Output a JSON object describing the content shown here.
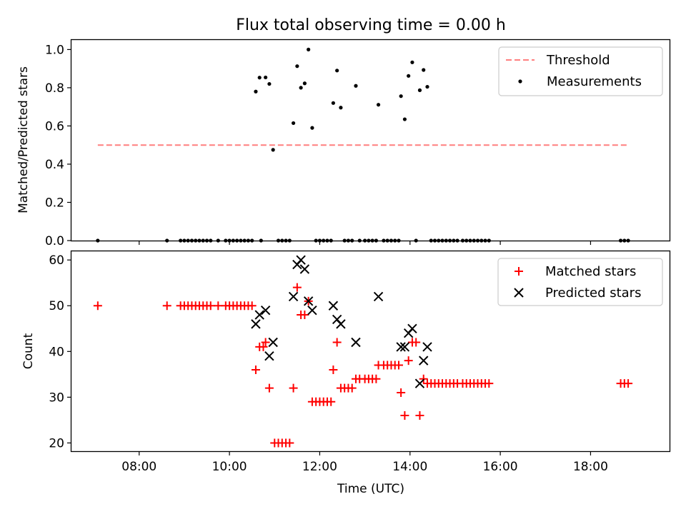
{
  "chart_data": [
    {
      "type": "scatter",
      "title": "Flux total observing time = 0.00 h",
      "xlabel": "",
      "ylabel": "Matched/Predicted stars",
      "xlim": [
        "06:30",
        "19:45"
      ],
      "ylim": [
        0,
        1.05
      ],
      "yticks": [
        "0.0",
        "0.2",
        "0.4",
        "0.6",
        "0.8",
        "1.0"
      ],
      "legend_position": "top-right",
      "threshold": {
        "name": "Threshold",
        "value": 0.5,
        "x_range": [
          "07:05",
          "18:50"
        ],
        "color": "#ff7f7f",
        "style": "dashed"
      },
      "series": [
        {
          "name": "Measurements",
          "color": "#000000",
          "marker": "dot",
          "points": [
            [
              "07:05",
              0.0
            ],
            [
              "08:37",
              0.0
            ],
            [
              "08:55",
              0.0
            ],
            [
              "09:00",
              0.0
            ],
            [
              "09:05",
              0.0
            ],
            [
              "09:10",
              0.0
            ],
            [
              "09:15",
              0.0
            ],
            [
              "09:20",
              0.0
            ],
            [
              "09:25",
              0.0
            ],
            [
              "09:30",
              0.0
            ],
            [
              "09:35",
              0.0
            ],
            [
              "09:45",
              0.0
            ],
            [
              "09:55",
              0.0
            ],
            [
              "10:00",
              0.0
            ],
            [
              "10:05",
              0.0
            ],
            [
              "10:10",
              0.0
            ],
            [
              "10:15",
              0.0
            ],
            [
              "10:20",
              0.0
            ],
            [
              "10:25",
              0.0
            ],
            [
              "10:30",
              0.0
            ],
            [
              "10:35",
              0.78
            ],
            [
              "10:40",
              0.853
            ],
            [
              "10:42",
              0.0
            ],
            [
              "10:48",
              0.854
            ],
            [
              "10:53",
              0.82
            ],
            [
              "10:58",
              0.475
            ],
            [
              "11:05",
              0.0
            ],
            [
              "11:10",
              0.0
            ],
            [
              "11:15",
              0.0
            ],
            [
              "11:20",
              0.0
            ],
            [
              "11:25",
              0.615
            ],
            [
              "11:30",
              0.913
            ],
            [
              "11:35",
              0.8
            ],
            [
              "11:40",
              0.823
            ],
            [
              "11:45",
              1.0
            ],
            [
              "11:50",
              0.59
            ],
            [
              "11:55",
              0.0
            ],
            [
              "12:00",
              0.0
            ],
            [
              "12:05",
              0.0
            ],
            [
              "12:10",
              0.0
            ],
            [
              "12:15",
              0.0
            ],
            [
              "12:18",
              0.72
            ],
            [
              "12:23",
              0.89
            ],
            [
              "12:28",
              0.696
            ],
            [
              "12:33",
              0.0
            ],
            [
              "12:38",
              0.0
            ],
            [
              "12:43",
              0.0
            ],
            [
              "12:48",
              0.81
            ],
            [
              "12:53",
              0.0
            ],
            [
              "13:00",
              0.0
            ],
            [
              "13:05",
              0.0
            ],
            [
              "13:10",
              0.0
            ],
            [
              "13:15",
              0.0
            ],
            [
              "13:18",
              0.711
            ],
            [
              "13:25",
              0.0
            ],
            [
              "13:30",
              0.0
            ],
            [
              "13:35",
              0.0
            ],
            [
              "13:40",
              0.0
            ],
            [
              "13:45",
              0.0
            ],
            [
              "13:48",
              0.756
            ],
            [
              "13:53",
              0.635
            ],
            [
              "13:58",
              0.862
            ],
            [
              "14:03",
              0.933
            ],
            [
              "14:08",
              0.0
            ],
            [
              "14:13",
              0.787
            ],
            [
              "14:18",
              0.893
            ],
            [
              "14:23",
              0.805
            ],
            [
              "14:28",
              0.0
            ],
            [
              "14:33",
              0.0
            ],
            [
              "14:38",
              0.0
            ],
            [
              "14:43",
              0.0
            ],
            [
              "14:48",
              0.0
            ],
            [
              "14:53",
              0.0
            ],
            [
              "14:58",
              0.0
            ],
            [
              "15:03",
              0.0
            ],
            [
              "15:10",
              0.0
            ],
            [
              "15:15",
              0.0
            ],
            [
              "15:20",
              0.0
            ],
            [
              "15:25",
              0.0
            ],
            [
              "15:30",
              0.0
            ],
            [
              "15:35",
              0.0
            ],
            [
              "15:40",
              0.0
            ],
            [
              "15:45",
              0.0
            ],
            [
              "18:40",
              0.0
            ],
            [
              "18:45",
              0.0
            ],
            [
              "18:50",
              0.0
            ]
          ]
        }
      ]
    },
    {
      "type": "scatter",
      "title": "",
      "xlabel": "Time (UTC)",
      "ylabel": "Count",
      "xlim": [
        "06:30",
        "19:45"
      ],
      "ylim": [
        18.2,
        61.9
      ],
      "yticks": [
        "20",
        "30",
        "40",
        "50",
        "60"
      ],
      "xticks": [
        "08:00",
        "10:00",
        "12:00",
        "14:00",
        "16:00",
        "18:00"
      ],
      "legend_position": "top-right",
      "series": [
        {
          "name": "Matched stars",
          "color": "#ff0000",
          "marker": "plus",
          "points": [
            [
              "07:05",
              50
            ],
            [
              "08:37",
              50
            ],
            [
              "08:55",
              50
            ],
            [
              "09:00",
              50
            ],
            [
              "09:05",
              50
            ],
            [
              "09:10",
              50
            ],
            [
              "09:15",
              50
            ],
            [
              "09:20",
              50
            ],
            [
              "09:25",
              50
            ],
            [
              "09:30",
              50
            ],
            [
              "09:35",
              50
            ],
            [
              "09:45",
              50
            ],
            [
              "09:55",
              50
            ],
            [
              "10:00",
              50
            ],
            [
              "10:05",
              50
            ],
            [
              "10:10",
              50
            ],
            [
              "10:15",
              50
            ],
            [
              "10:20",
              50
            ],
            [
              "10:25",
              50
            ],
            [
              "10:30",
              50
            ],
            [
              "10:35",
              36
            ],
            [
              "10:40",
              41
            ],
            [
              "10:45",
              41
            ],
            [
              "10:48",
              42
            ],
            [
              "10:53",
              32
            ],
            [
              "11:00",
              20
            ],
            [
              "11:05",
              20
            ],
            [
              "11:10",
              20
            ],
            [
              "11:15",
              20
            ],
            [
              "11:20",
              20
            ],
            [
              "11:25",
              32
            ],
            [
              "11:30",
              54
            ],
            [
              "11:35",
              48
            ],
            [
              "11:40",
              48
            ],
            [
              "11:45",
              51
            ],
            [
              "11:50",
              29
            ],
            [
              "11:55",
              29
            ],
            [
              "12:00",
              29
            ],
            [
              "12:05",
              29
            ],
            [
              "12:10",
              29
            ],
            [
              "12:15",
              29
            ],
            [
              "12:18",
              36
            ],
            [
              "12:23",
              42
            ],
            [
              "12:28",
              32
            ],
            [
              "12:33",
              32
            ],
            [
              "12:38",
              32
            ],
            [
              "12:43",
              32
            ],
            [
              "12:48",
              34
            ],
            [
              "12:53",
              34
            ],
            [
              "13:00",
              34
            ],
            [
              "13:05",
              34
            ],
            [
              "13:10",
              34
            ],
            [
              "13:15",
              34
            ],
            [
              "13:18",
              37
            ],
            [
              "13:25",
              37
            ],
            [
              "13:30",
              37
            ],
            [
              "13:35",
              37
            ],
            [
              "13:40",
              37
            ],
            [
              "13:45",
              37
            ],
            [
              "13:48",
              31
            ],
            [
              "13:53",
              26
            ],
            [
              "13:58",
              38
            ],
            [
              "14:03",
              42
            ],
            [
              "14:08",
              42
            ],
            [
              "14:13",
              26
            ],
            [
              "14:18",
              34
            ],
            [
              "14:23",
              33
            ],
            [
              "14:28",
              33
            ],
            [
              "14:33",
              33
            ],
            [
              "14:38",
              33
            ],
            [
              "14:43",
              33
            ],
            [
              "14:48",
              33
            ],
            [
              "14:53",
              33
            ],
            [
              "14:58",
              33
            ],
            [
              "15:03",
              33
            ],
            [
              "15:10",
              33
            ],
            [
              "15:15",
              33
            ],
            [
              "15:20",
              33
            ],
            [
              "15:25",
              33
            ],
            [
              "15:30",
              33
            ],
            [
              "15:35",
              33
            ],
            [
              "15:40",
              33
            ],
            [
              "15:45",
              33
            ],
            [
              "18:40",
              33
            ],
            [
              "18:45",
              33
            ],
            [
              "18:50",
              33
            ]
          ]
        },
        {
          "name": "Predicted stars",
          "color": "#000000",
          "marker": "x",
          "points": [
            [
              "10:35",
              46
            ],
            [
              "10:40",
              48
            ],
            [
              "10:48",
              49
            ],
            [
              "10:53",
              39
            ],
            [
              "10:58",
              42
            ],
            [
              "11:25",
              52
            ],
            [
              "11:30",
              59
            ],
            [
              "11:35",
              60
            ],
            [
              "11:40",
              58
            ],
            [
              "11:45",
              51
            ],
            [
              "11:50",
              49
            ],
            [
              "12:18",
              50
            ],
            [
              "12:23",
              47
            ],
            [
              "12:28",
              46
            ],
            [
              "12:48",
              42
            ],
            [
              "13:18",
              52
            ],
            [
              "13:48",
              41
            ],
            [
              "13:53",
              41
            ],
            [
              "13:58",
              44
            ],
            [
              "14:03",
              45
            ],
            [
              "14:13",
              33
            ],
            [
              "14:18",
              38
            ],
            [
              "14:23",
              41
            ]
          ]
        }
      ]
    }
  ]
}
